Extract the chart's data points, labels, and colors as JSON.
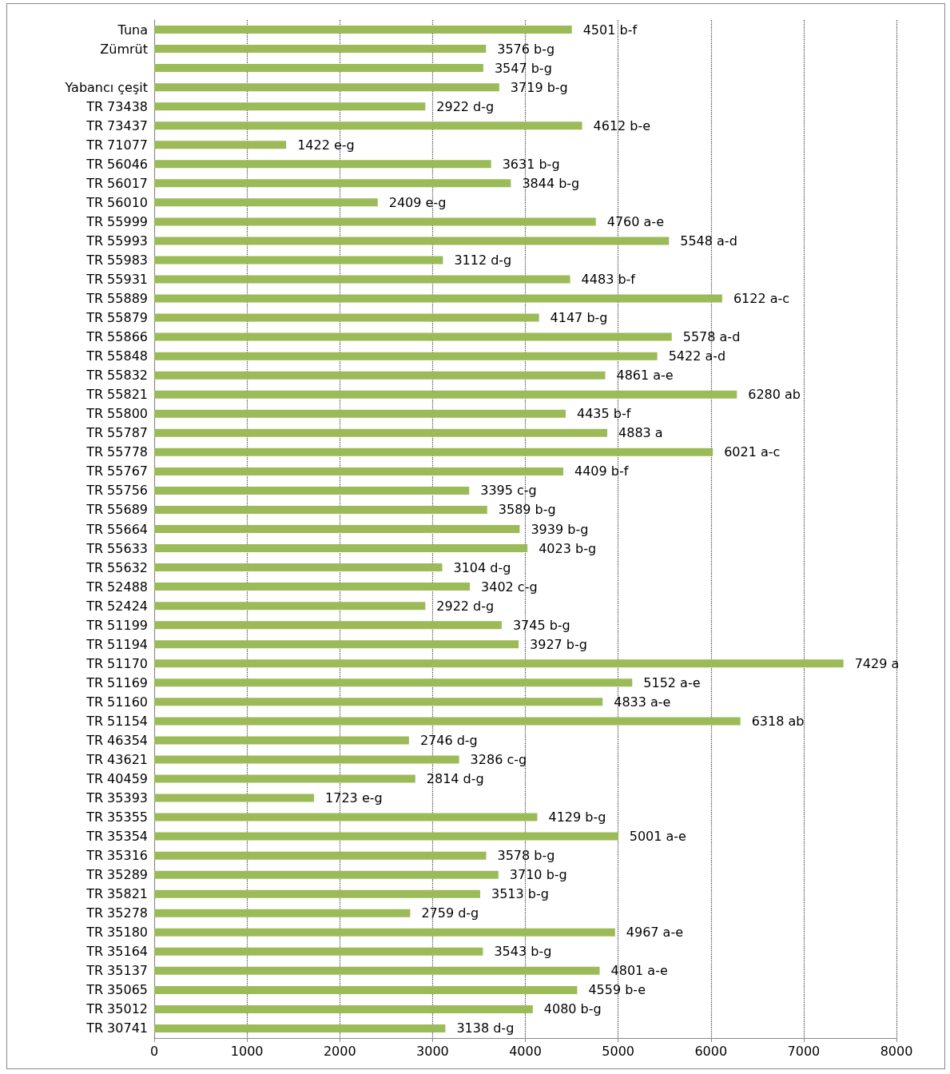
{
  "chart_data": {
    "type": "bar",
    "orientation": "horizontal",
    "grid": "x",
    "line_style": "dotted",
    "categories": [
      "Tuna",
      "Zümrüt",
      null,
      "Yabancı çeşit",
      "TR 73438",
      "TR 73437",
      "TR 71077",
      "TR 56046",
      "TR 56017",
      "TR 56010",
      "TR 55999",
      "TR 55993",
      "TR 55983",
      "TR 55931",
      "TR 55889",
      "TR 55879",
      "TR 55866",
      "TR 55848",
      "TR 55832",
      "TR 55821",
      "TR 55800",
      "TR 55787",
      "TR 55778",
      "TR 55767",
      "TR 55756",
      "TR 55689",
      "TR 55664",
      "TR 55633",
      "TR 55632",
      "TR 52488",
      "TR 52424",
      "TR 51199",
      "TR 51194",
      "TR 51170",
      "TR 51169",
      "TR 51160",
      "TR 51154",
      "TR 46354",
      "TR 43621",
      "TR 40459",
      "TR 35393",
      "TR 35355",
      "TR 35354",
      "TR 35316",
      "TR 35289",
      "TR 35821",
      "TR 35278",
      "TR 35180",
      "TR 35164",
      "TR 35137",
      "TR 35065",
      "TR 35012",
      "TR 30741"
    ],
    "values": [
      4501,
      3576,
      3547,
      3719,
      2922,
      4612,
      1422,
      3631,
      3844,
      2409,
      4760,
      5548,
      3112,
      4483,
      6122,
      4147,
      5578,
      5422,
      4861,
      6280,
      4435,
      4883,
      6021,
      4409,
      3395,
      3589,
      3939,
      4023,
      3104,
      3402,
      2922,
      3745,
      3927,
      7429,
      5152,
      4833,
      6318,
      2746,
      3286,
      2814,
      1723,
      4129,
      5001,
      3578,
      3710,
      3513,
      2759,
      4967,
      3543,
      4801,
      4559,
      4080,
      3138
    ],
    "value_labels": [
      "4501 b-f",
      "3576 b-g",
      "3547 b-g",
      "3719 b-g",
      "2922 d-g",
      "4612 b-e",
      "1422 e-g",
      "3631 b-g",
      "3844 b-g",
      "2409 e-g",
      "4760 a-e",
      "5548 a-d",
      "3112 d-g",
      "4483 b-f",
      "6122 a-c",
      "4147 b-g",
      "5578 a-d",
      "5422 a-d",
      "4861 a-e",
      "6280 ab",
      "4435 b-f",
      "4883 a",
      "6021 a-c",
      "4409 b-f",
      "3395 c-g",
      "3589 b-g",
      "3939 b-g",
      "4023 b-g",
      "3104 d-g",
      "3402 c-g",
      "2922 d-g",
      "3745 b-g",
      "3927 b-g",
      "7429 a",
      "5152 a-e",
      "4833 a-e",
      "6318 ab",
      "2746 d-g",
      "3286 c-g",
      "2814 d-g",
      "1723 e-g",
      "4129 b-g",
      "5001 a-e",
      "3578 b-g",
      "3710 b-g",
      "3513 b-g",
      "2759 d-g",
      "4967 a-e",
      "3543 b-g",
      "4801 a-e",
      "4559 b-e",
      "4080 b-g",
      "3138 d-g"
    ],
    "color": "#9bbb59",
    "xlim": [
      0,
      8000
    ],
    "xticks": [
      0,
      1000,
      2000,
      3000,
      4000,
      5000,
      6000,
      7000,
      8000
    ]
  }
}
